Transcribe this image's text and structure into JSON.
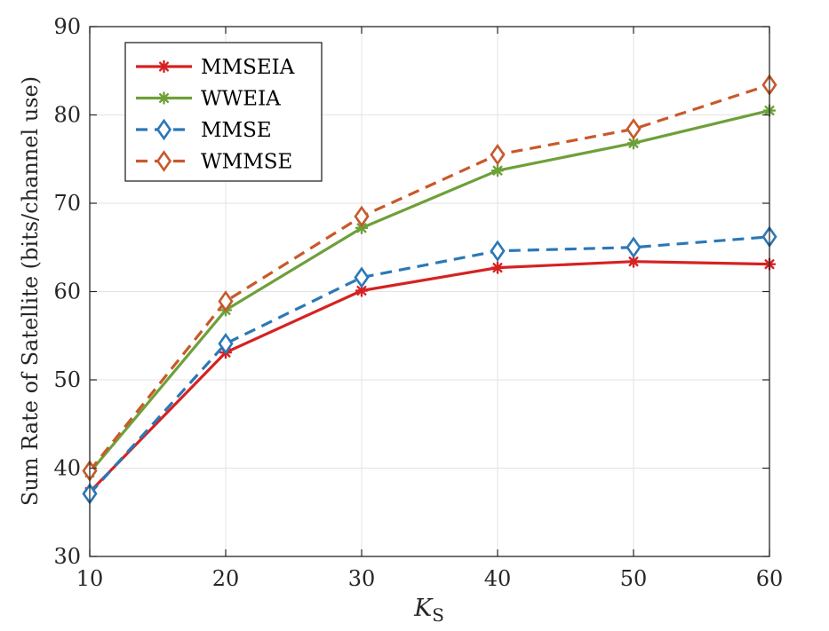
{
  "chart_data": {
    "type": "line",
    "title": "",
    "xlabel": {
      "main": "K",
      "sub": "S"
    },
    "ylabel": "Sum Rate of Satellite (bits/channel use)",
    "x": [
      10,
      20,
      30,
      40,
      50,
      60
    ],
    "xlim": [
      10,
      60
    ],
    "ylim": [
      30,
      90
    ],
    "xticks": [
      10,
      20,
      30,
      40,
      50,
      60
    ],
    "yticks": [
      30,
      40,
      50,
      60,
      70,
      80,
      90
    ],
    "xtick_labels": [
      "10",
      "20",
      "30",
      "40",
      "50",
      "60"
    ],
    "ytick_labels": [
      "30",
      "40",
      "50",
      "60",
      "70",
      "80",
      "90"
    ],
    "grid": true,
    "legend_position": "top-left",
    "series": [
      {
        "name": "MMSEIA",
        "values": [
          37.3,
          53.1,
          60.1,
          62.7,
          63.4,
          63.1
        ],
        "color": "#d62222",
        "dash": "solid",
        "marker": "asterisk"
      },
      {
        "name": "WWEIA",
        "values": [
          39.5,
          57.9,
          67.2,
          73.7,
          76.8,
          80.5
        ],
        "color": "#6ea03a",
        "dash": "solid",
        "marker": "asterisk"
      },
      {
        "name": "MMSE",
        "values": [
          37.1,
          54.1,
          61.6,
          64.6,
          65.0,
          66.2
        ],
        "color": "#2a78b8",
        "dash": "dashed",
        "marker": "diamond"
      },
      {
        "name": "WMMSE",
        "values": [
          39.7,
          58.9,
          68.5,
          75.5,
          78.4,
          83.4
        ],
        "color": "#c8592a",
        "dash": "dashed",
        "marker": "diamond"
      }
    ]
  }
}
